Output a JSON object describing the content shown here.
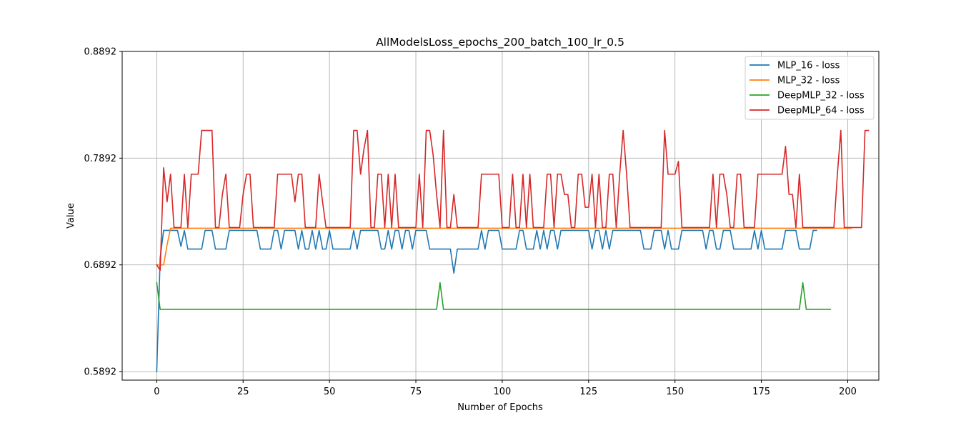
{
  "chart_data": {
    "type": "line",
    "title": "AllModelsLoss_epochs_200_batch_100_lr_0.5",
    "xlabel": "Number of Epochs",
    "ylabel": "Value",
    "xlim": [
      -10,
      209
    ],
    "ylim": [
      0.5812,
      0.8892
    ],
    "xticks": [
      0,
      25,
      50,
      75,
      100,
      125,
      150,
      175,
      200
    ],
    "xtick_labels": [
      "0",
      "25",
      "50",
      "75",
      "100",
      "125",
      "150",
      "175",
      "200"
    ],
    "yticks": [
      0.5892,
      0.6892,
      0.7892,
      0.8892
    ],
    "ytick_labels": [
      "0.5892",
      "0.6892",
      "0.7892",
      "0.8892"
    ],
    "grid": true,
    "legend_position": "top-right",
    "series": [
      {
        "name": "MLP_16 - loss",
        "color": "#1f77b4",
        "x_start": 0,
        "values": [
          0.5892,
          0.696,
          0.7215,
          0.7215,
          0.7215,
          0.7215,
          0.7215,
          0.7065,
          0.7215,
          0.704,
          0.704,
          0.704,
          0.704,
          0.704,
          0.7215,
          0.7215,
          0.7215,
          0.704,
          0.704,
          0.704,
          0.704,
          0.7215,
          0.7215,
          0.7215,
          0.7215,
          0.7215,
          0.7215,
          0.7215,
          0.7215,
          0.7215,
          0.704,
          0.704,
          0.704,
          0.704,
          0.7215,
          0.7215,
          0.704,
          0.7215,
          0.7215,
          0.7215,
          0.7215,
          0.704,
          0.7215,
          0.704,
          0.704,
          0.7215,
          0.704,
          0.7215,
          0.704,
          0.704,
          0.7215,
          0.704,
          0.704,
          0.704,
          0.704,
          0.704,
          0.704,
          0.7215,
          0.704,
          0.7215,
          0.7215,
          0.7215,
          0.7215,
          0.7215,
          0.7215,
          0.704,
          0.704,
          0.7215,
          0.704,
          0.7215,
          0.7215,
          0.704,
          0.7215,
          0.7215,
          0.704,
          0.7215,
          0.7215,
          0.7215,
          0.7215,
          0.704,
          0.704,
          0.704,
          0.704,
          0.704,
          0.704,
          0.704,
          0.6815,
          0.704,
          0.704,
          0.704,
          0.704,
          0.704,
          0.704,
          0.704,
          0.7215,
          0.704,
          0.7215,
          0.7215,
          0.7215,
          0.7215,
          0.704,
          0.704,
          0.704,
          0.704,
          0.704,
          0.7215,
          0.7215,
          0.704,
          0.704,
          0.704,
          0.7215,
          0.704,
          0.7215,
          0.704,
          0.7215,
          0.7215,
          0.704,
          0.7215,
          0.7215,
          0.7215,
          0.7215,
          0.7215,
          0.7215,
          0.7215,
          0.7215,
          0.7215,
          0.704,
          0.7215,
          0.7215,
          0.704,
          0.7215,
          0.704,
          0.7215,
          0.7215,
          0.7215,
          0.7215,
          0.7215,
          0.7215,
          0.7215,
          0.7215,
          0.7215,
          0.704,
          0.704,
          0.704,
          0.7215,
          0.7215,
          0.7215,
          0.704,
          0.7215,
          0.704,
          0.704,
          0.704,
          0.7215,
          0.7215,
          0.7215,
          0.7215,
          0.7215,
          0.7215,
          0.7215,
          0.704,
          0.7215,
          0.7215,
          0.704,
          0.704,
          0.7215,
          0.7215,
          0.7215,
          0.704,
          0.704,
          0.704,
          0.704,
          0.704,
          0.704,
          0.7215,
          0.704,
          0.7215,
          0.704,
          0.704,
          0.704,
          0.704,
          0.704,
          0.704,
          0.7215,
          0.7215,
          0.7215,
          0.7215,
          0.704,
          0.704,
          0.704,
          0.704,
          0.7215,
          0.7215
        ]
      },
      {
        "name": "MLP_32 - loss",
        "color": "#ff7f0e",
        "x_start": 0,
        "values": [
          0.6892,
          0.6892,
          0.6892,
          0.708,
          0.7235,
          0.7235,
          0.7235,
          0.7235,
          0.7235,
          0.7235,
          0.7235,
          0.7235,
          0.7235,
          0.7235,
          0.7235,
          0.7235,
          0.7235,
          0.7235,
          0.7235,
          0.7235,
          0.7235,
          0.7235,
          0.7235,
          0.7235,
          0.7235,
          0.7235,
          0.7235,
          0.7235,
          0.7235,
          0.7235,
          0.7235,
          0.7235,
          0.7235,
          0.7235,
          0.7235,
          0.7235,
          0.7235,
          0.7235,
          0.7235,
          0.7235,
          0.7235,
          0.7235,
          0.7235,
          0.7235,
          0.7235,
          0.7235,
          0.7235,
          0.7235,
          0.7235,
          0.7235,
          0.7235,
          0.7235,
          0.7235,
          0.7235,
          0.7235,
          0.7235,
          0.7235,
          0.7235,
          0.7235,
          0.7235,
          0.7235,
          0.7235,
          0.7235,
          0.7235,
          0.7235,
          0.7235,
          0.7235,
          0.7235,
          0.7235,
          0.7235,
          0.7235,
          0.7235,
          0.7235,
          0.7235,
          0.7235,
          0.7235,
          0.7235,
          0.7235,
          0.7235,
          0.7235,
          0.7235,
          0.7235,
          0.7235,
          0.7235,
          0.7235,
          0.7235,
          0.7235,
          0.7235,
          0.7235,
          0.7235,
          0.7235,
          0.7235,
          0.7235,
          0.7235,
          0.7235,
          0.7235,
          0.7235,
          0.7235,
          0.7235,
          0.7235,
          0.7235,
          0.7235,
          0.7235,
          0.7235,
          0.7235,
          0.7235,
          0.7235,
          0.7235,
          0.7235,
          0.7235,
          0.7235,
          0.7235,
          0.7235,
          0.7235,
          0.7235,
          0.7235,
          0.7235,
          0.7235,
          0.7235,
          0.7235,
          0.7235,
          0.7235,
          0.7235,
          0.7235,
          0.7235,
          0.7235,
          0.7235,
          0.7235,
          0.7235,
          0.7235,
          0.7235,
          0.7235,
          0.7235,
          0.7235,
          0.7235,
          0.7235,
          0.7235,
          0.7235,
          0.7235,
          0.7235,
          0.7235,
          0.7235,
          0.7235,
          0.7235,
          0.7235,
          0.7235,
          0.7235,
          0.7235,
          0.7235,
          0.7235,
          0.7235,
          0.7235,
          0.7235,
          0.7235,
          0.7235,
          0.7235,
          0.7235,
          0.7235,
          0.7235,
          0.7235,
          0.7235,
          0.7235,
          0.7235,
          0.7235,
          0.7235,
          0.7235,
          0.7235,
          0.7235,
          0.7235,
          0.7235,
          0.7235,
          0.7235,
          0.7235,
          0.7235,
          0.7235,
          0.7235,
          0.7235,
          0.7235,
          0.7235,
          0.7235,
          0.7235,
          0.7235,
          0.7235,
          0.7235,
          0.7235,
          0.7235,
          0.7235,
          0.7235,
          0.7235,
          0.7235,
          0.7235,
          0.7235,
          0.7235,
          0.7235,
          0.7235,
          0.7235,
          0.7235,
          0.7235,
          0.7235,
          0.7235,
          0.7235,
          0.7235
        ]
      },
      {
        "name": "DeepMLP_32 - loss",
        "color": "#2ca02c",
        "x_start": 0,
        "values": [
          0.6725,
          0.6475,
          0.6475,
          0.6475,
          0.6475,
          0.6475,
          0.6475,
          0.6475,
          0.6475,
          0.6475,
          0.6475,
          0.6475,
          0.6475,
          0.6475,
          0.6475,
          0.6475,
          0.6475,
          0.6475,
          0.6475,
          0.6475,
          0.6475,
          0.6475,
          0.6475,
          0.6475,
          0.6475,
          0.6475,
          0.6475,
          0.6475,
          0.6475,
          0.6475,
          0.6475,
          0.6475,
          0.6475,
          0.6475,
          0.6475,
          0.6475,
          0.6475,
          0.6475,
          0.6475,
          0.6475,
          0.6475,
          0.6475,
          0.6475,
          0.6475,
          0.6475,
          0.6475,
          0.6475,
          0.6475,
          0.6475,
          0.6475,
          0.6475,
          0.6475,
          0.6475,
          0.6475,
          0.6475,
          0.6475,
          0.6475,
          0.6475,
          0.6475,
          0.6475,
          0.6475,
          0.6475,
          0.6475,
          0.6475,
          0.6475,
          0.6475,
          0.6475,
          0.6475,
          0.6475,
          0.6475,
          0.6475,
          0.6475,
          0.6475,
          0.6475,
          0.6475,
          0.6475,
          0.6475,
          0.6475,
          0.6475,
          0.6475,
          0.6475,
          0.6475,
          0.6725,
          0.6475,
          0.6475,
          0.6475,
          0.6475,
          0.6475,
          0.6475,
          0.6475,
          0.6475,
          0.6475,
          0.6475,
          0.6475,
          0.6475,
          0.6475,
          0.6475,
          0.6475,
          0.6475,
          0.6475,
          0.6475,
          0.6475,
          0.6475,
          0.6475,
          0.6475,
          0.6475,
          0.6475,
          0.6475,
          0.6475,
          0.6475,
          0.6475,
          0.6475,
          0.6475,
          0.6475,
          0.6475,
          0.6475,
          0.6475,
          0.6475,
          0.6475,
          0.6475,
          0.6475,
          0.6475,
          0.6475,
          0.6475,
          0.6475,
          0.6475,
          0.6475,
          0.6475,
          0.6475,
          0.6475,
          0.6475,
          0.6475,
          0.6475,
          0.6475,
          0.6475,
          0.6475,
          0.6475,
          0.6475,
          0.6475,
          0.6475,
          0.6475,
          0.6475,
          0.6475,
          0.6475,
          0.6475,
          0.6475,
          0.6475,
          0.6475,
          0.6475,
          0.6475,
          0.6475,
          0.6475,
          0.6475,
          0.6475,
          0.6475,
          0.6475,
          0.6475,
          0.6475,
          0.6475,
          0.6475,
          0.6475,
          0.6475,
          0.6475,
          0.6475,
          0.6475,
          0.6475,
          0.6475,
          0.6475,
          0.6475,
          0.6475,
          0.6475,
          0.6475,
          0.6475,
          0.6475,
          0.6475,
          0.6475,
          0.6475,
          0.6475,
          0.6475,
          0.6475,
          0.6475,
          0.6475,
          0.6475,
          0.6475,
          0.6475,
          0.6475,
          0.6475,
          0.6725,
          0.6475,
          0.6475,
          0.6475,
          0.6475,
          0.6475,
          0.6475,
          0.6475,
          0.6475
        ]
      },
      {
        "name": "DeepMLP_64 - loss",
        "color": "#d62728",
        "x_start": 0,
        "values": [
          0.6892,
          0.6842,
          0.7802,
          0.7482,
          0.7742,
          0.7242,
          0.7242,
          0.7242,
          0.7742,
          0.7242,
          0.7742,
          0.7742,
          0.7742,
          0.8152,
          0.8152,
          0.8152,
          0.8152,
          0.7242,
          0.7242,
          0.7552,
          0.7742,
          0.7242,
          0.7242,
          0.7242,
          0.7242,
          0.7552,
          0.7742,
          0.7742,
          0.7242,
          0.7242,
          0.7242,
          0.7242,
          0.7242,
          0.7242,
          0.7242,
          0.7742,
          0.7742,
          0.7742,
          0.7742,
          0.7742,
          0.7482,
          0.7742,
          0.7742,
          0.7242,
          0.7242,
          0.7242,
          0.7242,
          0.7742,
          0.7482,
          0.7242,
          0.7242,
          0.7242,
          0.7242,
          0.7242,
          0.7242,
          0.7242,
          0.7242,
          0.8152,
          0.8152,
          0.7742,
          0.7982,
          0.8152,
          0.7242,
          0.7242,
          0.7742,
          0.7742,
          0.7242,
          0.7742,
          0.7242,
          0.7742,
          0.7242,
          0.7242,
          0.7242,
          0.7242,
          0.7242,
          0.7242,
          0.7742,
          0.7242,
          0.8152,
          0.8152,
          0.7922,
          0.7552,
          0.7242,
          0.8152,
          0.7242,
          0.7242,
          0.7552,
          0.7242,
          0.7242,
          0.7242,
          0.7242,
          0.7242,
          0.7242,
          0.7242,
          0.7742,
          0.7742,
          0.7742,
          0.7742,
          0.7742,
          0.7742,
          0.7242,
          0.7242,
          0.7242,
          0.7742,
          0.7242,
          0.7242,
          0.7742,
          0.7242,
          0.7742,
          0.7242,
          0.7242,
          0.7242,
          0.7242,
          0.7742,
          0.7742,
          0.7242,
          0.7742,
          0.7742,
          0.7552,
          0.7552,
          0.7242,
          0.7242,
          0.7742,
          0.7742,
          0.7432,
          0.7432,
          0.7742,
          0.7242,
          0.7742,
          0.7242,
          0.7242,
          0.7742,
          0.7742,
          0.7242,
          0.7742,
          0.8152,
          0.7742,
          0.7242,
          0.7242,
          0.7242,
          0.7242,
          0.7242,
          0.7242,
          0.7242,
          0.7242,
          0.7242,
          0.7242,
          0.8152,
          0.7742,
          0.7742,
          0.7742,
          0.7862,
          0.7242,
          0.7242,
          0.7242,
          0.7242,
          0.7242,
          0.7242,
          0.7242,
          0.7242,
          0.7242,
          0.7742,
          0.7242,
          0.7742,
          0.7742,
          0.7552,
          0.7242,
          0.7242,
          0.7742,
          0.7742,
          0.7242,
          0.7242,
          0.7242,
          0.7242,
          0.7742,
          0.7742,
          0.7742,
          0.7742,
          0.7742,
          0.7742,
          0.7742,
          0.7742,
          0.8002,
          0.7552,
          0.7552,
          0.7242,
          0.7742,
          0.7242,
          0.7242,
          0.7242,
          0.7242,
          0.7242,
          0.7242,
          0.7242,
          0.7242,
          0.7242,
          0.7242,
          0.7742,
          0.8152,
          0.7242,
          0.7242,
          0.7242,
          0.7242,
          0.7242,
          0.7242,
          0.8152,
          0.8152
        ]
      }
    ]
  }
}
